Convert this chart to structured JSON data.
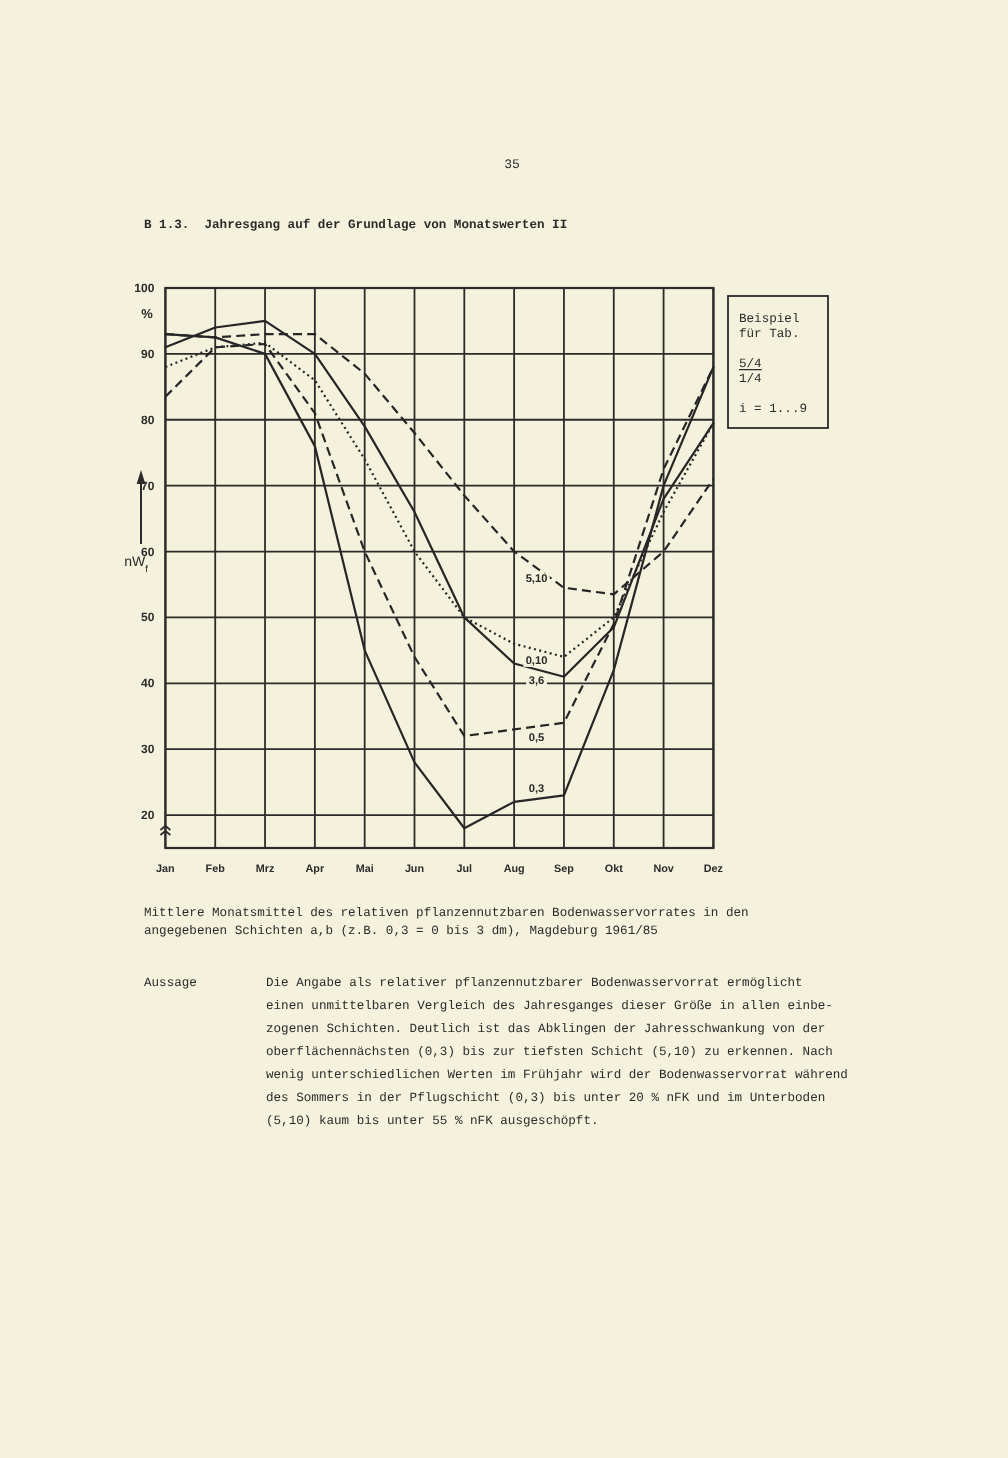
{
  "chart_data": {
    "type": "line",
    "title": "B 1.3.  Jahresgang auf der Grundlage von Monatswerten II",
    "ylabel": "nW$_{f}$",
    "categories": [
      "Jan",
      "Feb",
      "Mrz",
      "Apr",
      "Mai",
      "Jun",
      "Jul",
      "Aug",
      "Sep",
      "Okt",
      "Nov",
      "Dez"
    ],
    "series": [
      {
        "name": "0,3",
        "color": "#262626",
        "line_style": "solid",
        "values": [
          93,
          92.5,
          90,
          76,
          45,
          28,
          18,
          22,
          23,
          42,
          70,
          88
        ]
      },
      {
        "name": "0,5",
        "color": "#262626",
        "line_style": "dashed",
        "values": [
          83.5,
          91,
          91.5,
          81,
          60,
          44,
          32,
          33,
          34,
          49,
          72.5,
          88
        ]
      },
      {
        "name": "3,6",
        "color": "#262626",
        "line_style": "solid",
        "values": [
          91,
          94,
          95,
          90,
          79,
          66,
          50,
          43,
          41,
          48.5,
          68,
          79.5
        ]
      },
      {
        "name": "0,10",
        "color": "#262626",
        "line_style": "dotted",
        "values": [
          88,
          91,
          91.7,
          86,
          74,
          60,
          50,
          46,
          44,
          50,
          66,
          79.5
        ]
      },
      {
        "name": "5,10",
        "color": "#262626",
        "line_style": "dashed",
        "values": [
          93,
          92.5,
          93,
          93,
          87,
          78,
          68.5,
          60,
          54.5,
          53.5,
          60,
          71
        ]
      }
    ],
    "ylim": [
      15,
      100
    ],
    "yticks": [
      20,
      30,
      40,
      50,
      60,
      70,
      80,
      90,
      100
    ],
    "grid": true,
    "annotations": [
      "35",
      "%",
      "Beispiel\nfür Tab.\n\n5/4\n1/4\n\ni = 1...9",
      "Mittlere Monatsmittel des relativen pflanzennutzbaren Bodenwasservorrates in den\nangegebenen Schichten a,b (z.B. 0,3 = 0 bis 3 dm), Magdeburg 1961/85",
      "Aussage",
      "Die Angabe als relativer pflanzennutzbarer Bodenwasservorrat ermöglicht\neinen unmittelbaren Vergleich des Jahresganges dieser Größe in allen einbe-\nzogenen Schichten. Deutlich ist das Abklingen der Jahresschwankung von der\noberflächennächsten (0,3) bis zur tiefsten Schicht (5,10) zu erkennen. Nach\nwenig unterschiedlichen Werten im Frühjahr wird der Bodenwasservorrat während\ndes Sommers in der Pflugschicht (0,3) bis unter 20 % nFK und im Unterboden\n(5,10) kaum bis unter 55 % nFK ausgeschöpft."
    ]
  }
}
